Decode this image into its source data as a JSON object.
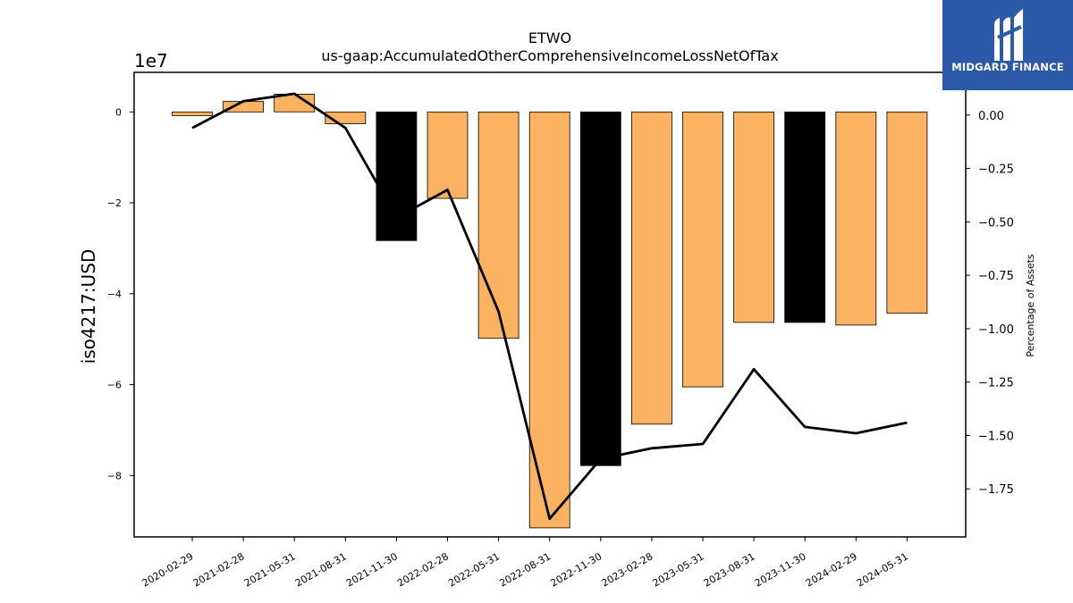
{
  "chart_data": {
    "type": "bar",
    "title": "ETWO",
    "subtitle": "us-gaap:AccumulatedOtherComprehensiveIncomeLossNetOfTax",
    "ylabel": "iso4217:USD",
    "y2label": "Percentage of Assets",
    "y_offset_text": "1e7",
    "categories": [
      "2020-02-29",
      "2021-02-28",
      "2021-05-31",
      "2021-08-31",
      "2021-11-30",
      "2022-02-28",
      "2022-05-31",
      "2022-08-31",
      "2022-11-30",
      "2023-02-28",
      "2023-05-31",
      "2023-08-31",
      "2023-11-30",
      "2024-02-29",
      "2024-05-31"
    ],
    "values": [
      -800000,
      2300000,
      3900000,
      -2600000,
      -28300000,
      -19000000,
      -49800000,
      -91500000,
      -77800000,
      -68700000,
      -60500000,
      -46300000,
      -46300000,
      -46900000,
      -44300000
    ],
    "bar_colors": [
      "#fbb361",
      "#fbb361",
      "#fbb361",
      "#fbb361",
      "#000000",
      "#fbb361",
      "#fbb361",
      "#fbb361",
      "#000000",
      "#fbb361",
      "#fbb361",
      "#fbb361",
      "#000000",
      "#fbb361",
      "#fbb361"
    ],
    "pct_of_assets": [
      -0.06,
      0.065,
      0.1,
      -0.06,
      -0.48,
      -0.35,
      -0.92,
      -1.89,
      -1.61,
      -1.56,
      -1.54,
      -1.19,
      -1.46,
      -1.49,
      -1.44
    ],
    "ylim": [
      -93500000,
      8700000
    ],
    "y_ticks": [
      0,
      -20000000,
      -40000000,
      -60000000,
      -80000000
    ],
    "y_tick_labels": [
      "0",
      "−2",
      "−4",
      "−6",
      "−8"
    ],
    "y2lim": [
      -1.975,
      0.2
    ],
    "y2_ticks": [
      0.0,
      -0.25,
      -0.5,
      -0.75,
      -1.0,
      -1.25,
      -1.5,
      -1.75
    ],
    "y2_tick_labels": [
      "0.00",
      "−0.25",
      "−0.50",
      "−0.75",
      "−1.00",
      "−1.25",
      "−1.50",
      "−1.75"
    ],
    "grid": false
  },
  "logo": {
    "text": "MIDGARD FINANCE",
    "background": "#2c5aa8"
  }
}
